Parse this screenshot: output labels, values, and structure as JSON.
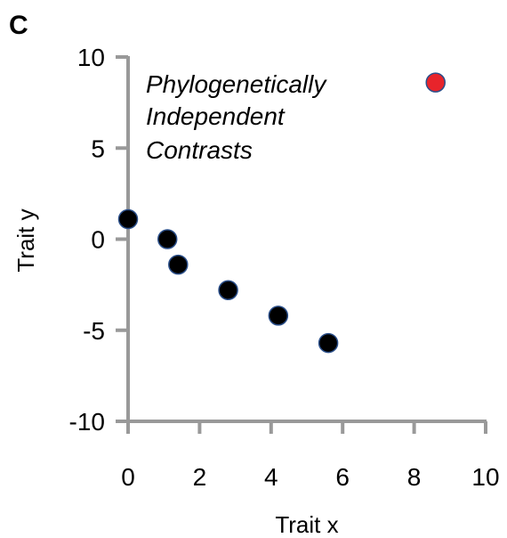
{
  "panel_label": "C",
  "chart_data": {
    "type": "scatter",
    "title": "",
    "xlabel": "Trait x",
    "ylabel": "Trait y",
    "xlim": [
      0,
      10
    ],
    "ylim": [
      -10,
      10
    ],
    "x_ticks": [
      "0",
      "2",
      "4",
      "6",
      "8",
      "10"
    ],
    "y_ticks": [
      "10",
      "5",
      "0",
      "-5",
      "-10"
    ],
    "annotation": [
      "Phylogenetically",
      "Independent",
      "Contrasts"
    ],
    "grid": false,
    "axis_color": "#999999",
    "point_color": "#000000",
    "point_stroke": "#2b4f8a",
    "highlight_color": "#e8242b",
    "points": [
      {
        "x": 0.0,
        "y": 1.1,
        "highlight": false
      },
      {
        "x": 1.1,
        "y": 0.0,
        "highlight": false
      },
      {
        "x": 1.4,
        "y": -1.4,
        "highlight": false
      },
      {
        "x": 2.8,
        "y": -2.8,
        "highlight": false
      },
      {
        "x": 4.2,
        "y": -4.2,
        "highlight": false
      },
      {
        "x": 5.6,
        "y": -5.7,
        "highlight": false
      },
      {
        "x": 8.6,
        "y": 8.6,
        "highlight": true
      }
    ]
  }
}
